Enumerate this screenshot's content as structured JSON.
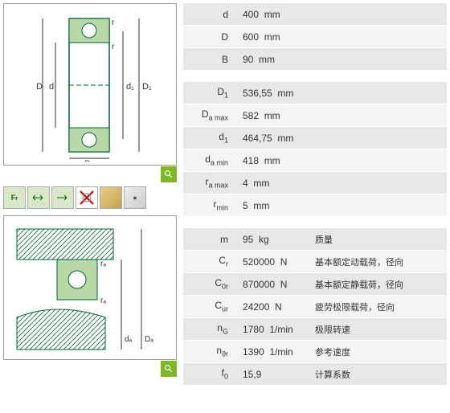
{
  "group1": [
    {
      "sym": "d",
      "val": "400",
      "unit": "mm"
    },
    {
      "sym": "D",
      "val": "600",
      "unit": "mm"
    },
    {
      "sym": "B",
      "val": "90",
      "unit": "mm"
    }
  ],
  "group2": [
    {
      "sym": "D",
      "sub": "1",
      "val": "536,55",
      "unit": "mm"
    },
    {
      "sym": "D",
      "sub": "a max",
      "val": "582",
      "unit": "mm"
    },
    {
      "sym": "d",
      "sub": "1",
      "val": "464,75",
      "unit": "mm"
    },
    {
      "sym": "d",
      "sub": "a min",
      "val": "418",
      "unit": "mm"
    },
    {
      "sym": "r",
      "sub": "a max",
      "val": "4",
      "unit": "mm"
    },
    {
      "sym": "r",
      "sub": "min",
      "val": "5",
      "unit": "mm"
    }
  ],
  "group3": [
    {
      "sym": "m",
      "val": "95",
      "unit": "kg",
      "desc": "质量"
    },
    {
      "sym": "C",
      "sub": "r",
      "val": "520000",
      "unit": "N",
      "desc": "基本额定动载荷，径向"
    },
    {
      "sym": "C",
      "sub": "0r",
      "val": "870000",
      "unit": "N",
      "desc": "基本额定静载荷，径向"
    },
    {
      "sym": "C",
      "sub": "ur",
      "val": "24200",
      "unit": "N",
      "desc": "疲劳极限载荷，径向"
    },
    {
      "sym": "n",
      "sub": "G",
      "val": "1780",
      "unit": "1/min",
      "desc": "极限转速"
    },
    {
      "sym": "n",
      "sub": "ϑr",
      "val": "1390",
      "unit": "1/min",
      "desc": "参考速度"
    },
    {
      "sym": "f",
      "sub": "0",
      "val": "15,9",
      "unit": "",
      "desc": "计算系数"
    }
  ],
  "colors": {
    "green": "#7fb827",
    "row_odd": "#e8e8e8",
    "row_even": "#f4f4f4"
  }
}
